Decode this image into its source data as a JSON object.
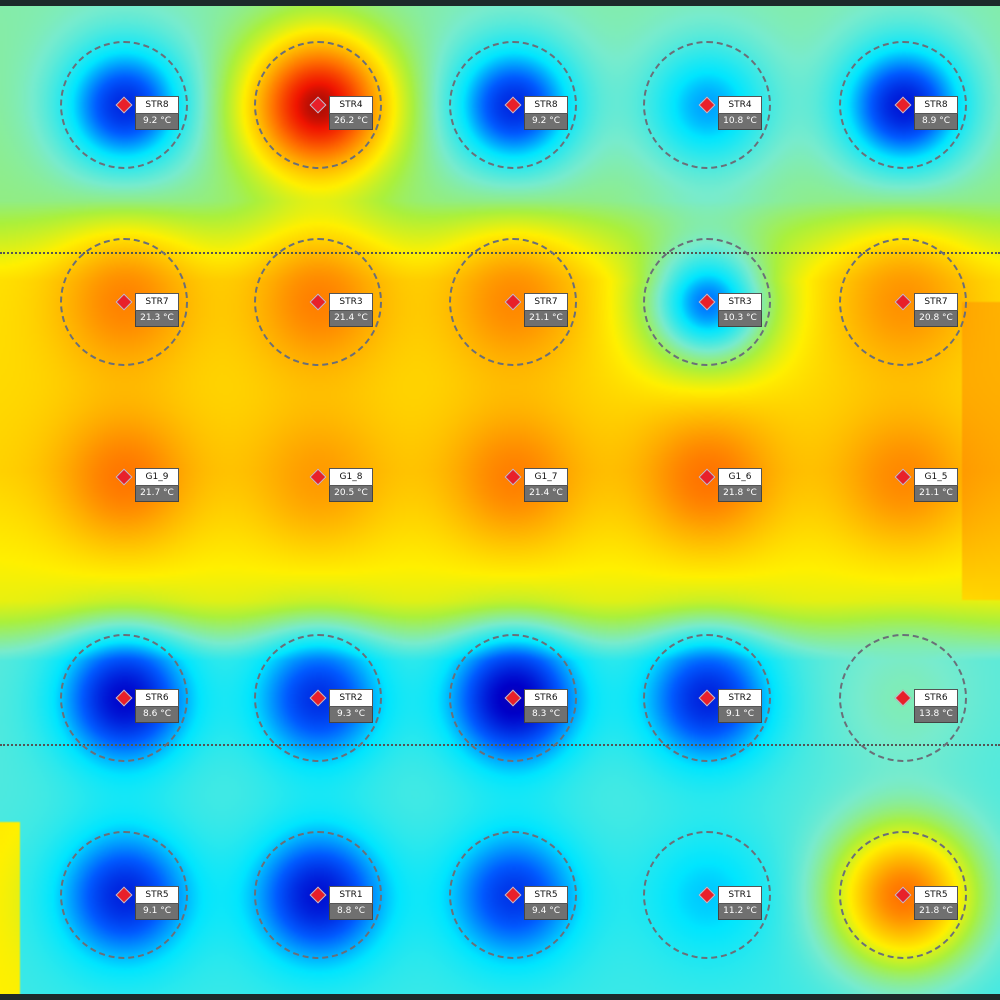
{
  "unit": "°C",
  "colors": {
    "cold": "#0000c8",
    "cool": "#00e5ff",
    "neutral": "#7fe9d0",
    "warm": "#ffee00",
    "hot": "#ff2000",
    "marker": "#e8202a"
  },
  "sensors": [
    {
      "name": "STR8",
      "value": "9.2 °C",
      "t": 9.2,
      "zone": true
    },
    {
      "name": "STR4",
      "value": "26.2 °C",
      "t": 26.2,
      "zone": true
    },
    {
      "name": "STR8",
      "value": "9.2 °C",
      "t": 9.2,
      "zone": true
    },
    {
      "name": "STR4",
      "value": "10.8 °C",
      "t": 10.8,
      "zone": true
    },
    {
      "name": "STR8",
      "value": "8.9 °C",
      "t": 8.9,
      "zone": true
    },
    {
      "name": "STR7",
      "value": "21.3 °C",
      "t": 21.3,
      "zone": true
    },
    {
      "name": "STR3",
      "value": "21.4 °C",
      "t": 21.4,
      "zone": true
    },
    {
      "name": "STR7",
      "value": "21.1 °C",
      "t": 21.1,
      "zone": true
    },
    {
      "name": "STR3",
      "value": "10.3 °C",
      "t": 10.3,
      "zone": true
    },
    {
      "name": "STR7",
      "value": "20.8 °C",
      "t": 20.8,
      "zone": true
    },
    {
      "name": "G1_9",
      "value": "21.7 °C",
      "t": 21.7,
      "zone": false
    },
    {
      "name": "G1_8",
      "value": "20.5 °C",
      "t": 20.5,
      "zone": false
    },
    {
      "name": "G1_7",
      "value": "21.4 °C",
      "t": 21.4,
      "zone": false
    },
    {
      "name": "G1_6",
      "value": "21.8 °C",
      "t": 21.8,
      "zone": false
    },
    {
      "name": "G1_5",
      "value": "21.1 °C",
      "t": 21.1,
      "zone": false
    },
    {
      "name": "STR6",
      "value": "8.6 °C",
      "t": 8.6,
      "zone": true
    },
    {
      "name": "STR2",
      "value": "9.3 °C",
      "t": 9.3,
      "zone": true
    },
    {
      "name": "STR6",
      "value": "8.3 °C",
      "t": 8.3,
      "zone": true
    },
    {
      "name": "STR2",
      "value": "9.1 °C",
      "t": 9.1,
      "zone": true
    },
    {
      "name": "STR6",
      "value": "13.8 °C",
      "t": 13.8,
      "zone": true
    },
    {
      "name": "STR5",
      "value": "9.1 °C",
      "t": 9.1,
      "zone": true
    },
    {
      "name": "STR1",
      "value": "8.8 °C",
      "t": 8.8,
      "zone": true
    },
    {
      "name": "STR5",
      "value": "9.4 °C",
      "t": 9.4,
      "zone": true
    },
    {
      "name": "STR1",
      "value": "11.2 °C",
      "t": 11.2,
      "zone": true
    },
    {
      "name": "STR5",
      "value": "21.8 °C",
      "t": 21.8,
      "zone": true
    }
  ]
}
